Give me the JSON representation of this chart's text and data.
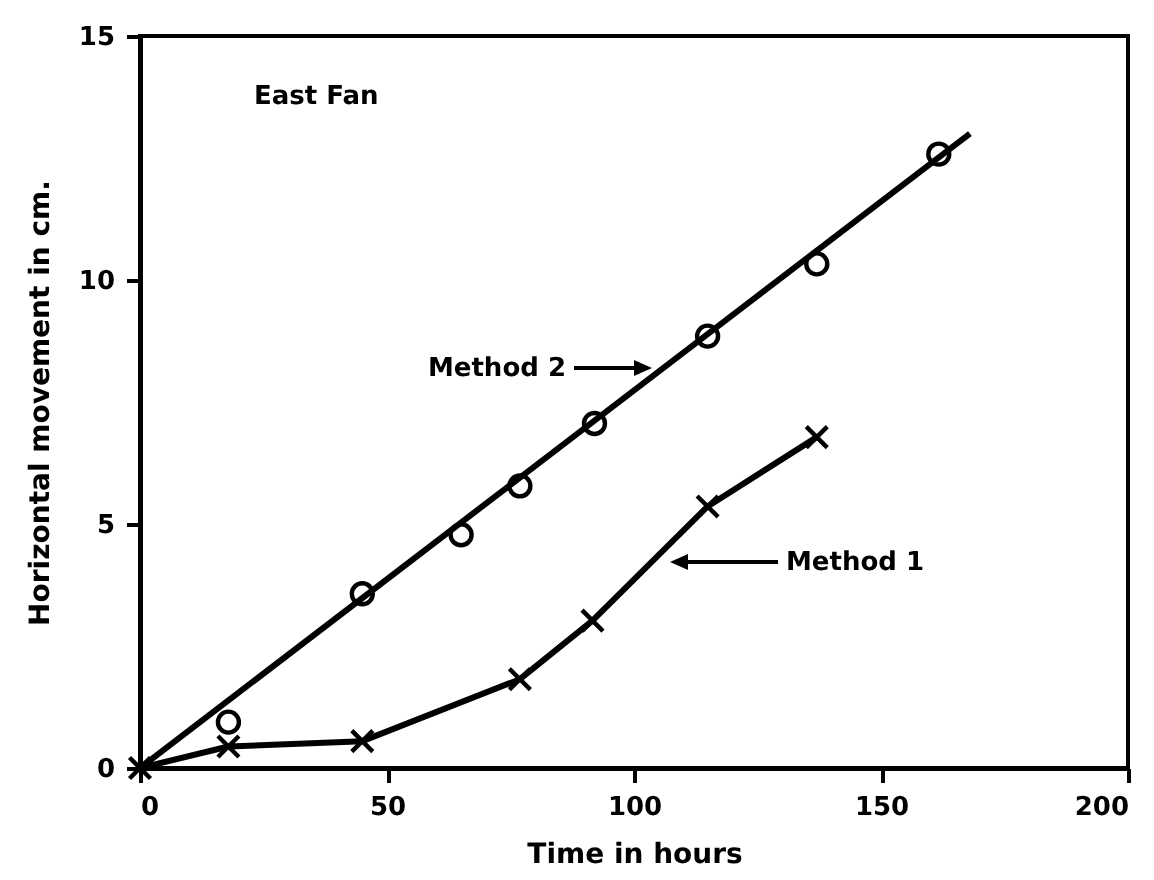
{
  "chart_data": {
    "type": "scatter",
    "xlabel": "Time in hours",
    "ylabel": "Horizontal movement in cm.",
    "annotations": [
      "East Fan",
      "Method 2",
      "Method 1"
    ],
    "series": [
      {
        "color": "#000000",
        "marker": "circle",
        "x": [
          17.9,
          45,
          65,
          76.9,
          92,
          114.9,
          137,
          161.7
        ],
        "values": [
          0.94,
          3.57,
          4.78,
          5.78,
          7.06,
          8.85,
          10.33,
          12.58
        ]
      },
      {
        "type": "line",
        "color": "#000000",
        "x": [
          0,
          168
        ],
        "values": [
          0,
          13
        ]
      },
      {
        "type": "line",
        "color": "#000000",
        "marker": "cross",
        "x": [
          0,
          17.9,
          45,
          76.9,
          91.6,
          114.9,
          137
        ],
        "values": [
          0,
          0.44,
          0.55,
          1.82,
          3.02,
          5.36,
          6.78
        ]
      }
    ],
    "xlim": [
      0,
      200
    ],
    "xticks": [
      0,
      50,
      100,
      150,
      200
    ],
    "ylim": [
      0,
      15
    ],
    "yticks": [
      0,
      5,
      10,
      15
    ],
    "grid": false
  }
}
